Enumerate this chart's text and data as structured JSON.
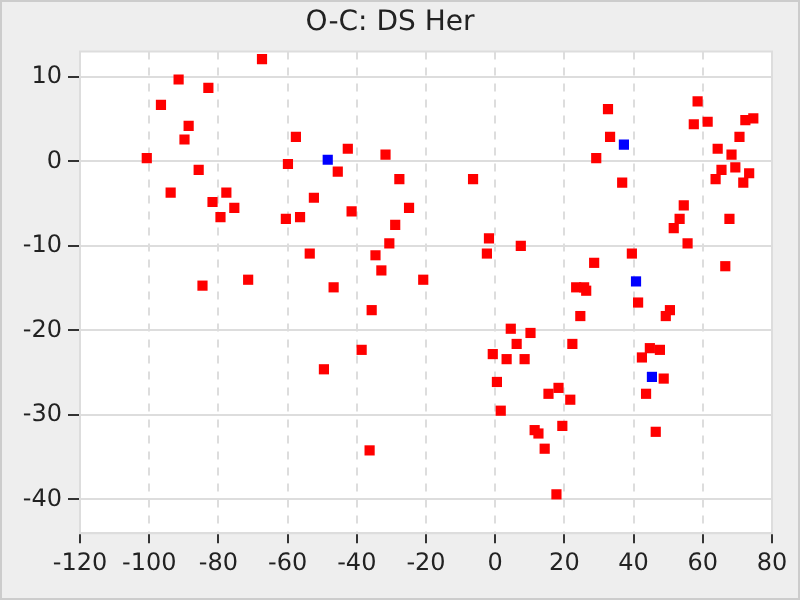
{
  "chart_data": {
    "type": "scatter",
    "title": "O-C: DS Her",
    "marker": "square",
    "grid": true,
    "legend": false,
    "xlim": [
      -120,
      80
    ],
    "xticks": [
      -120,
      -100,
      -80,
      -60,
      -40,
      -20,
      0,
      20,
      40,
      60,
      80
    ],
    "ylim": [
      -44,
      13
    ],
    "yticks": [
      -40,
      -30,
      -20,
      -10,
      0,
      10
    ],
    "series": [
      {
        "color": "#ff0000",
        "x": [
          -100.7,
          -96.6,
          -91.5,
          -93.8,
          -88.6,
          -89.8,
          -82.9,
          -85.7,
          -81.7,
          -77.7,
          -79.4,
          -75.4,
          -84.6,
          -71.4,
          -67.4,
          -60.5,
          -59.9,
          -57.6,
          -56.4,
          -52.4,
          -53.6,
          -46.7,
          -45.5,
          -42.6,
          -41.5,
          -31.7,
          -27.7,
          -34.6,
          -32.9,
          -30.6,
          -28.9,
          -24.9,
          -6.4,
          -1.8,
          -2.4,
          7.4,
          -20.8,
          32.6,
          33.2,
          29.2,
          36.7,
          28.6,
          39.5,
          23.4,
          25.7,
          26.3,
          58.5,
          57.4,
          61.4,
          72.3,
          74.6,
          70.6,
          64.3,
          68.3,
          65.4,
          69.4,
          73.4,
          63.7,
          71.7,
          54.5,
          53.3,
          51.6,
          55.6,
          67.7,
          66.5,
          -35.7,
          -38.6,
          -49.5,
          -36.3,
          41.3,
          50.5,
          49.3,
          24.6,
          4.5,
          10.2,
          6.2,
          22.3,
          -0.7,
          3.3,
          8.5,
          44.7,
          47.6,
          42.4,
          48.7,
          0.5,
          18.3,
          15.4,
          21.7,
          43.6,
          1.6,
          11.4,
          12.5,
          19.4,
          14.3,
          46.4,
          17.7
        ],
        "values": [
          0.4,
          6.7,
          9.7,
          -3.7,
          4.2,
          2.6,
          8.7,
          -1.0,
          -4.8,
          -3.7,
          -6.6,
          -5.5,
          -14.7,
          -14.0,
          12.1,
          -6.8,
          -0.3,
          2.9,
          -6.6,
          -4.3,
          -10.9,
          -14.9,
          -1.2,
          1.5,
          -5.9,
          0.8,
          -2.1,
          -11.1,
          -12.9,
          -9.7,
          -7.5,
          -5.5,
          -2.1,
          -9.1,
          -10.9,
          -10.0,
          -14.0,
          6.2,
          2.9,
          0.4,
          -2.5,
          -12.0,
          -10.9,
          -14.9,
          -14.9,
          -15.3,
          7.1,
          4.4,
          4.7,
          4.9,
          5.1,
          2.9,
          1.5,
          0.8,
          -1.0,
          -0.7,
          -1.4,
          -2.1,
          -2.5,
          -5.2,
          -6.8,
          -7.9,
          -9.7,
          -6.8,
          -12.4,
          -17.6,
          -22.3,
          -24.6,
          -34.2,
          -16.7,
          -17.6,
          -18.3,
          -18.3,
          -19.8,
          -20.3,
          -21.6,
          -21.6,
          -22.8,
          -23.4,
          -23.4,
          -22.1,
          -22.3,
          -23.2,
          -25.7,
          -26.1,
          -26.8,
          -27.5,
          -28.2,
          -27.5,
          -29.5,
          -31.8,
          -32.2,
          -31.3,
          -34.0,
          -32.0,
          -39.4
        ]
      },
      {
        "color": "#0000ff",
        "x": [
          -48.4,
          37.2,
          40.7,
          45.3
        ],
        "values": [
          0.2,
          2.0,
          -14.2,
          -25.5
        ]
      }
    ]
  }
}
